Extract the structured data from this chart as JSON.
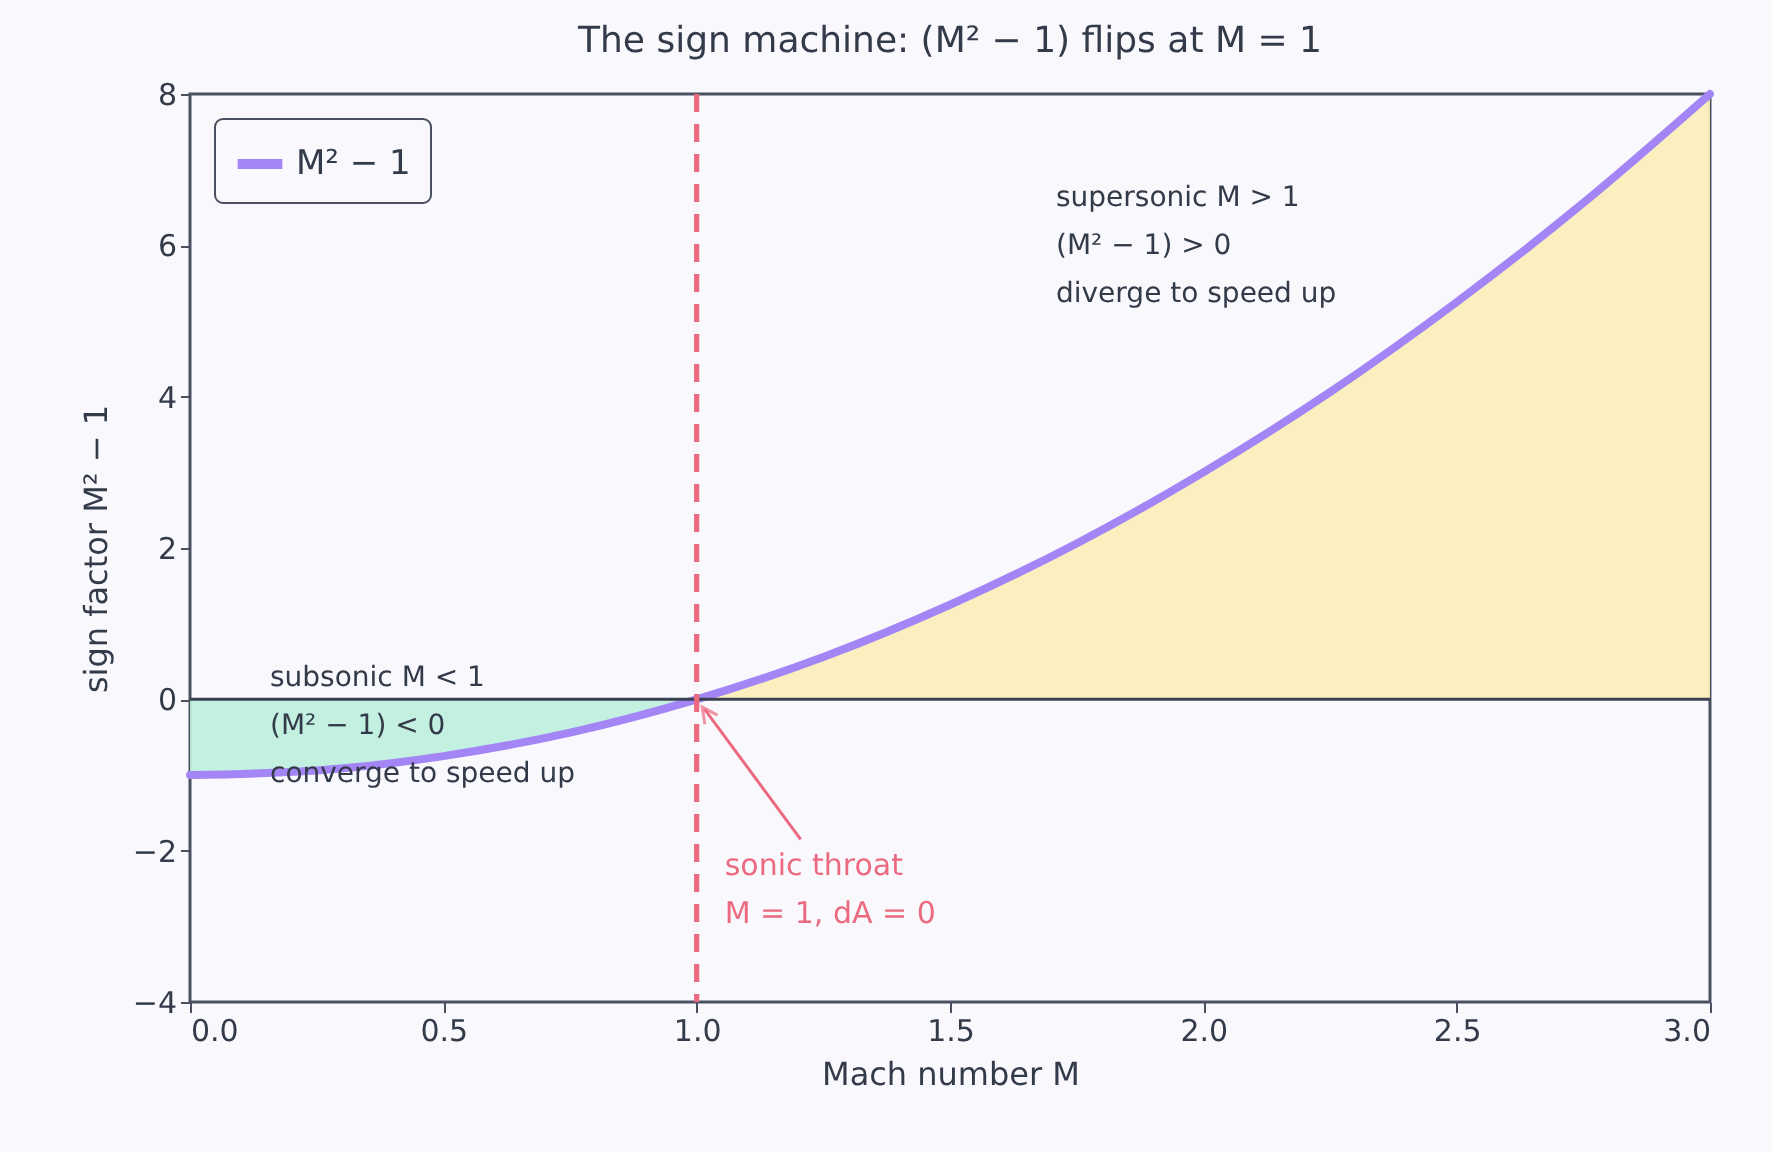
{
  "chart_data": {
    "type": "line",
    "title": "The sign machine: (M² − 1) flips at M = 1",
    "xlabel": "Mach number  M",
    "ylabel": "sign factor  M² − 1",
    "xlim": [
      0,
      3
    ],
    "xticks": [
      {
        "value": 0,
        "label": "0.0"
      },
      0.5,
      {
        "value": 1,
        "label": "1.0"
      },
      1.5,
      {
        "value": 2,
        "label": "2.0"
      },
      2.5,
      {
        "value": 3,
        "label": "3.0"
      }
    ],
    "ylim": [
      -4,
      8
    ],
    "yticks": [
      -4,
      -2,
      0,
      2,
      4,
      6,
      8
    ],
    "grid": false,
    "legend": "top left",
    "series": [
      {
        "type": "area",
        "color": "#bdeedd",
        "x": [
          0,
          0.25,
          0.5,
          0.75,
          1
        ],
        "values": [
          -1,
          -0.94,
          -0.75,
          -0.44,
          0
        ]
      },
      {
        "type": "area",
        "color": "#fcedb8",
        "x": [
          1,
          1.25,
          1.5,
          1.75,
          2,
          2.25,
          2.5,
          2.75,
          3
        ],
        "values": [
          0,
          0.56,
          1.25,
          2.06,
          3,
          4.06,
          5.25,
          6.56,
          8
        ]
      },
      {
        "name": "M² − 1",
        "color": "#a385f5",
        "x": [
          0,
          0.25,
          0.5,
          0.75,
          1,
          1.25,
          1.5,
          1.75,
          2,
          2.25,
          2.5,
          2.75,
          3
        ],
        "values": [
          -1,
          -0.94,
          -0.75,
          -0.44,
          0,
          0.56,
          1.25,
          2.06,
          3,
          4.06,
          5.25,
          6.56,
          8
        ]
      }
    ],
    "ref_lines": [
      {
        "axis": "y",
        "value": 0,
        "color": "#3a4150",
        "line_style": "solid"
      },
      {
        "axis": "x",
        "value": 1,
        "color": "#ec6a80",
        "line_style": "dashed"
      }
    ],
    "annotations": [
      "subsonic M < 1\n(M² − 1) < 0\nconverge to speed up",
      "supersonic M > 1\n(M² − 1) > 0\ndiverge to speed up",
      {
        "text": "sonic throat\nM = 1, dA = 0",
        "x": 1,
        "y": 0
      }
    ]
  }
}
